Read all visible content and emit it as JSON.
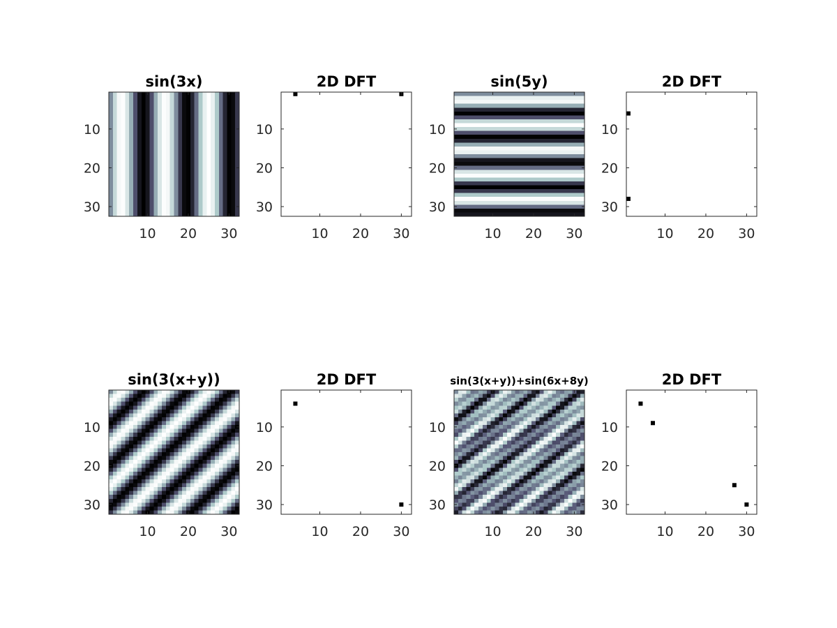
{
  "figure": {
    "background": "#ffffff",
    "layout": "2 rows x 4 columns"
  },
  "colormap": {
    "name": "bone",
    "colors": [
      "#000000",
      "#545474",
      "#a8c6c6",
      "#ffffff"
    ]
  },
  "chart_data": [
    {
      "type": "heatmap",
      "title": "sin(3x)",
      "grid_size": 32,
      "function": "sin(3x)",
      "frequency": {
        "fx": 3,
        "fy": 0
      },
      "xticks": [
        "10",
        "20",
        "30"
      ],
      "yticks": [
        "10",
        "20",
        "30"
      ],
      "xlim": [
        0.5,
        32.5
      ],
      "ylim": [
        0.5,
        32.5
      ],
      "y_direction": "reverse",
      "colormap": "bone",
      "grid": false
    },
    {
      "type": "scatter",
      "title": "2D DFT",
      "points": [
        {
          "x": 4,
          "y": 1
        },
        {
          "x": 30,
          "y": 1
        }
      ],
      "xticks": [
        "10",
        "20",
        "30"
      ],
      "yticks": [
        "10",
        "20",
        "30"
      ],
      "xlim": [
        0.5,
        32.5
      ],
      "ylim": [
        0.5,
        32.5
      ],
      "y_direction": "reverse",
      "marker_color": "#000000",
      "grid": false
    },
    {
      "type": "heatmap",
      "title": "sin(5y)",
      "grid_size": 32,
      "function": "sin(5y)",
      "frequency": {
        "fx": 0,
        "fy": 5
      },
      "xticks": [
        "10",
        "20",
        "30"
      ],
      "yticks": [
        "10",
        "20",
        "30"
      ],
      "xlim": [
        0.5,
        32.5
      ],
      "ylim": [
        0.5,
        32.5
      ],
      "y_direction": "reverse",
      "colormap": "bone",
      "grid": false
    },
    {
      "type": "scatter",
      "title": "2D DFT",
      "points": [
        {
          "x": 1,
          "y": 6
        },
        {
          "x": 1,
          "y": 28
        }
      ],
      "xticks": [
        "10",
        "20",
        "30"
      ],
      "yticks": [
        "10",
        "20",
        "30"
      ],
      "xlim": [
        0.5,
        32.5
      ],
      "ylim": [
        0.5,
        32.5
      ],
      "y_direction": "reverse",
      "marker_color": "#000000",
      "grid": false
    },
    {
      "type": "heatmap",
      "title": "sin(3(x+y))",
      "grid_size": 32,
      "function": "sin(3(x+y))",
      "frequency": {
        "fx": 3,
        "fy": 3
      },
      "xticks": [
        "10",
        "20",
        "30"
      ],
      "yticks": [
        "10",
        "20",
        "30"
      ],
      "xlim": [
        0.5,
        32.5
      ],
      "ylim": [
        0.5,
        32.5
      ],
      "y_direction": "reverse",
      "colormap": "bone",
      "grid": false
    },
    {
      "type": "scatter",
      "title": "2D DFT",
      "points": [
        {
          "x": 4,
          "y": 4
        },
        {
          "x": 30,
          "y": 30
        }
      ],
      "xticks": [
        "10",
        "20",
        "30"
      ],
      "yticks": [
        "10",
        "20",
        "30"
      ],
      "xlim": [
        0.5,
        32.5
      ],
      "ylim": [
        0.5,
        32.5
      ],
      "y_direction": "reverse",
      "marker_color": "#000000",
      "grid": false
    },
    {
      "type": "heatmap",
      "title": "sin(3(x+y))+sin(6x+8y)",
      "grid_size": 32,
      "function": "sin(3(x+y))+sin(6x+8y)",
      "frequency": {
        "fx": 3,
        "fy": 3,
        "fx2": 6,
        "fy2": 8
      },
      "xticks": [
        "10",
        "20",
        "30"
      ],
      "yticks": [
        "10",
        "20",
        "30"
      ],
      "xlim": [
        0.5,
        32.5
      ],
      "ylim": [
        0.5,
        32.5
      ],
      "y_direction": "reverse",
      "colormap": "bone",
      "grid": false
    },
    {
      "type": "scatter",
      "title": "2D DFT",
      "points": [
        {
          "x": 4,
          "y": 4
        },
        {
          "x": 7,
          "y": 9
        },
        {
          "x": 27,
          "y": 25
        },
        {
          "x": 30,
          "y": 30
        }
      ],
      "xticks": [
        "10",
        "20",
        "30"
      ],
      "yticks": [
        "10",
        "20",
        "30"
      ],
      "xlim": [
        0.5,
        32.5
      ],
      "ylim": [
        0.5,
        32.5
      ],
      "y_direction": "reverse",
      "marker_color": "#000000",
      "grid": false
    }
  ]
}
